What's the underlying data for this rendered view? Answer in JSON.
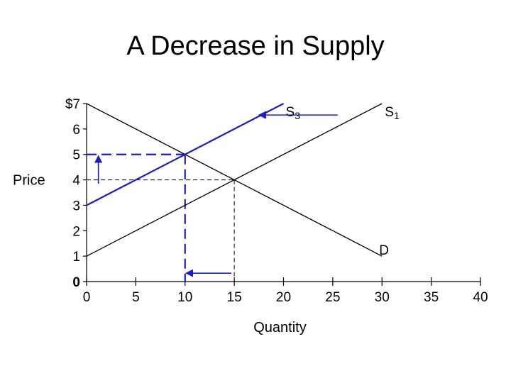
{
  "slide": {
    "title": "A Decrease in Supply"
  },
  "chart_data": {
    "type": "line",
    "title": "A Decrease in Supply",
    "xlabel": "Quantity",
    "ylabel": "Price",
    "xlim": [
      0,
      40
    ],
    "ylim": [
      0,
      7
    ],
    "x_ticks": [
      {
        "value": 0,
        "label": "0"
      },
      {
        "value": 5,
        "label": "5"
      },
      {
        "value": 10,
        "label": "10"
      },
      {
        "value": 15,
        "label": "15"
      },
      {
        "value": 20,
        "label": "20"
      },
      {
        "value": 25,
        "label": "25"
      },
      {
        "value": 30,
        "label": "30"
      },
      {
        "value": 35,
        "label": "35"
      },
      {
        "value": 40,
        "label": "40"
      }
    ],
    "y_ticks": [
      {
        "value": 0,
        "label": "0"
      },
      {
        "value": 1,
        "label": "1"
      },
      {
        "value": 2,
        "label": "2"
      },
      {
        "value": 3,
        "label": "3"
      },
      {
        "value": 4,
        "label": "4"
      },
      {
        "value": 5,
        "label": "5"
      },
      {
        "value": 6,
        "label": "6"
      },
      {
        "value": 7,
        "label": "$7"
      }
    ],
    "grid": false,
    "series": [
      {
        "name": "D",
        "label_main": "D",
        "label_sub": "",
        "color": "#000000",
        "points": [
          [
            0,
            7
          ],
          [
            30,
            1
          ]
        ]
      },
      {
        "name": "S1",
        "label_main": "S",
        "label_sub": "1",
        "color": "#000000",
        "points": [
          [
            0,
            1
          ],
          [
            30,
            7
          ]
        ]
      },
      {
        "name": "S3",
        "label_main": "S",
        "label_sub": "3",
        "color": "#1a1acd",
        "points": [
          [
            0,
            3
          ],
          [
            20,
            7
          ]
        ]
      }
    ],
    "original_equilibrium": {
      "x": 15,
      "y": 4
    },
    "new_equilibrium": {
      "x": 10,
      "y": 5
    },
    "colors": {
      "accent": "#1a1acd",
      "axis": "#000000",
      "guide": "#000000"
    }
  }
}
